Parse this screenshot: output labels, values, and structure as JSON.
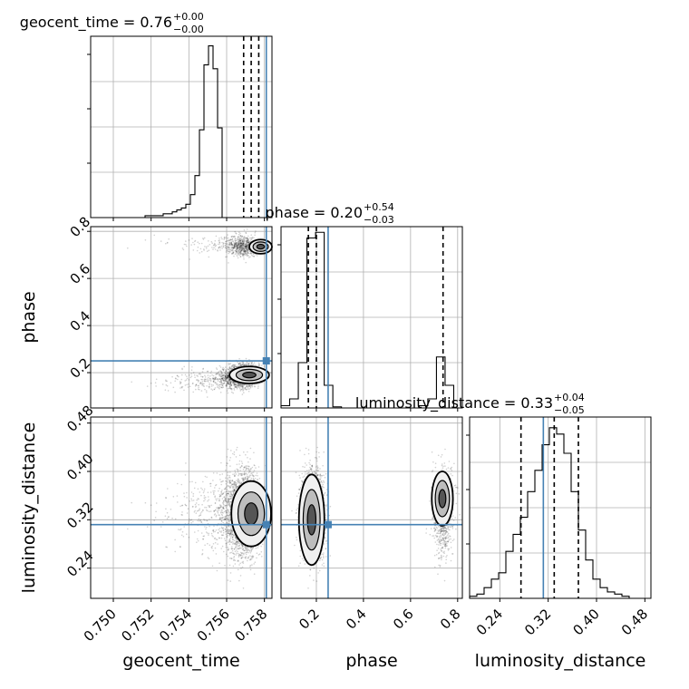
{
  "chart_data": {
    "type": "corner",
    "parameters": [
      "geocent_time",
      "phase",
      "luminosity_distance"
    ],
    "truths": [
      0.7581,
      0.25,
      0.312
    ],
    "truth_color": "#4682b4",
    "ranges": [
      [
        0.7488,
        0.7584
      ],
      [
        0.05,
        0.82
      ],
      [
        0.19,
        0.49
      ]
    ],
    "ticks": [
      {
        "values": [
          0.75,
          0.752,
          0.754,
          0.756,
          0.758
        ],
        "labels": [
          "0.750",
          "0.752",
          "0.754",
          "0.756",
          "0.758"
        ]
      },
      {
        "values": [
          0.2,
          0.4,
          0.6,
          0.8
        ],
        "labels": [
          "0.2",
          "0.4",
          "0.6",
          "0.8"
        ]
      },
      {
        "values": [
          0.24,
          0.32,
          0.4,
          0.48
        ],
        "labels": [
          "0.24",
          "0.32",
          "0.40",
          "0.48"
        ]
      }
    ],
    "titles": [
      {
        "name": "geocent_time",
        "value": "0.76",
        "plus": "+0.00",
        "minus": "−0.00"
      },
      {
        "name": "phase",
        "value": "0.20",
        "plus": "+0.54",
        "minus": "−0.03"
      },
      {
        "name": "luminosity_distance",
        "value": "0.33",
        "plus": "+0.04",
        "minus": "−0.05"
      }
    ],
    "quantiles": [
      [
        0.7569,
        0.7573,
        0.7577
      ],
      [
        0.166,
        0.2,
        0.738
      ],
      [
        0.275,
        0.33,
        0.37
      ]
    ],
    "histograms": [
      {
        "counts": [
          0,
          0,
          0,
          0,
          0,
          0,
          0,
          0,
          0,
          0,
          0,
          0,
          1,
          1,
          1,
          1,
          2,
          2,
          3,
          4,
          5,
          7,
          12,
          22,
          46,
          80,
          90,
          78,
          47,
          0,
          0,
          0,
          0,
          0,
          0,
          0,
          0,
          0,
          0,
          0
        ],
        "max": 95
      },
      {
        "counts": [
          2,
          8,
          40,
          150,
          155,
          20,
          1,
          0,
          0,
          0,
          0,
          0,
          0,
          0,
          0,
          0,
          2,
          8,
          45,
          20,
          0
        ],
        "max": 160
      },
      {
        "counts": [
          1,
          2,
          5,
          9,
          12,
          22,
          30,
          38,
          50,
          60,
          72,
          80,
          77,
          68,
          50,
          32,
          18,
          9,
          5,
          3,
          2,
          1,
          0,
          0,
          0
        ],
        "max": 85
      }
    ],
    "grid": true
  }
}
